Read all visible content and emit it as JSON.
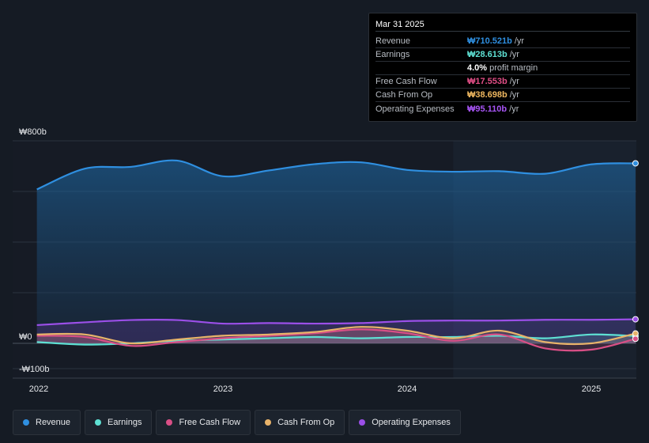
{
  "tooltip": {
    "date": "Mar 31 2025",
    "rows": [
      {
        "label": "Revenue",
        "value": "₩710.521b",
        "unit": "/yr",
        "color": "#2f8fe0"
      },
      {
        "label": "Earnings",
        "value": "₩28.613b",
        "unit": "/yr",
        "color": "#5ee0d3"
      },
      {
        "label": "",
        "value": "4.0%",
        "unit": "profit margin",
        "color": "#ffffff"
      },
      {
        "label": "Free Cash Flow",
        "value": "₩17.553b",
        "unit": "/yr",
        "color": "#e04e86"
      },
      {
        "label": "Cash From Op",
        "value": "₩38.698b",
        "unit": "/yr",
        "color": "#f0b860"
      },
      {
        "label": "Operating Expenses",
        "value": "₩95.110b",
        "unit": "/yr",
        "color": "#a855f7"
      }
    ]
  },
  "legend": [
    {
      "label": "Revenue",
      "color": "#2f8fe0"
    },
    {
      "label": "Earnings",
      "color": "#5ee0d3"
    },
    {
      "label": "Free Cash Flow",
      "color": "#d94f86"
    },
    {
      "label": "Cash From Op",
      "color": "#e8b36a"
    },
    {
      "label": "Operating Expenses",
      "color": "#9b4fe8"
    }
  ],
  "chart_data": {
    "type": "area",
    "y_tick_labels": [
      "₩800b",
      "₩0",
      "-₩100b"
    ],
    "ylim": [
      -100,
      800
    ],
    "x_tick_labels": [
      "2022",
      "2023",
      "2024",
      "2025"
    ],
    "x_tick_values": [
      2022.0,
      2023.0,
      2024.0,
      2025.0
    ],
    "xlim": [
      2021.85,
      2025.25
    ],
    "forecast_start": 2024.25,
    "series": [
      {
        "name": "Revenue",
        "color": "#2f8fe0",
        "x": [
          2021.99,
          2022.25,
          2022.5,
          2022.75,
          2023.0,
          2023.25,
          2023.5,
          2023.75,
          2024.0,
          2024.25,
          2024.5,
          2024.75,
          2025.0,
          2025.24
        ],
        "y": [
          608,
          690,
          697,
          722,
          660,
          683,
          708,
          715,
          685,
          678,
          680,
          670,
          707,
          711
        ]
      },
      {
        "name": "Earnings",
        "color": "#5ee0d3",
        "x": [
          2021.99,
          2022.25,
          2022.5,
          2022.75,
          2023.0,
          2023.25,
          2023.5,
          2023.75,
          2024.0,
          2024.25,
          2024.5,
          2024.75,
          2025.0,
          2025.24
        ],
        "y": [
          5,
          -5,
          0,
          10,
          15,
          20,
          25,
          20,
          25,
          25,
          30,
          20,
          35,
          29
        ]
      },
      {
        "name": "Free Cash Flow",
        "color": "#d94f86",
        "x": [
          2021.99,
          2022.25,
          2022.5,
          2022.75,
          2023.0,
          2023.25,
          2023.5,
          2023.75,
          2024.0,
          2024.25,
          2024.5,
          2024.75,
          2025.0,
          2025.24
        ],
        "y": [
          30,
          25,
          -10,
          5,
          20,
          30,
          40,
          55,
          40,
          10,
          35,
          -20,
          -25,
          18
        ]
      },
      {
        "name": "Cash From Op",
        "color": "#e8b36a",
        "x": [
          2021.99,
          2022.25,
          2022.5,
          2022.75,
          2023.0,
          2023.25,
          2023.5,
          2023.75,
          2024.0,
          2024.25,
          2024.5,
          2024.75,
          2025.0,
          2025.24
        ],
        "y": [
          35,
          35,
          0,
          15,
          30,
          35,
          45,
          65,
          50,
          20,
          50,
          5,
          0,
          39
        ]
      },
      {
        "name": "Operating Expenses",
        "color": "#9b4fe8",
        "x": [
          2021.99,
          2022.25,
          2022.5,
          2022.75,
          2023.0,
          2023.25,
          2023.5,
          2023.75,
          2024.0,
          2024.25,
          2024.5,
          2024.75,
          2025.0,
          2025.24
        ],
        "y": [
          72,
          83,
          92,
          92,
          78,
          80,
          78,
          80,
          88,
          90,
          90,
          93,
          93,
          95
        ]
      }
    ]
  }
}
